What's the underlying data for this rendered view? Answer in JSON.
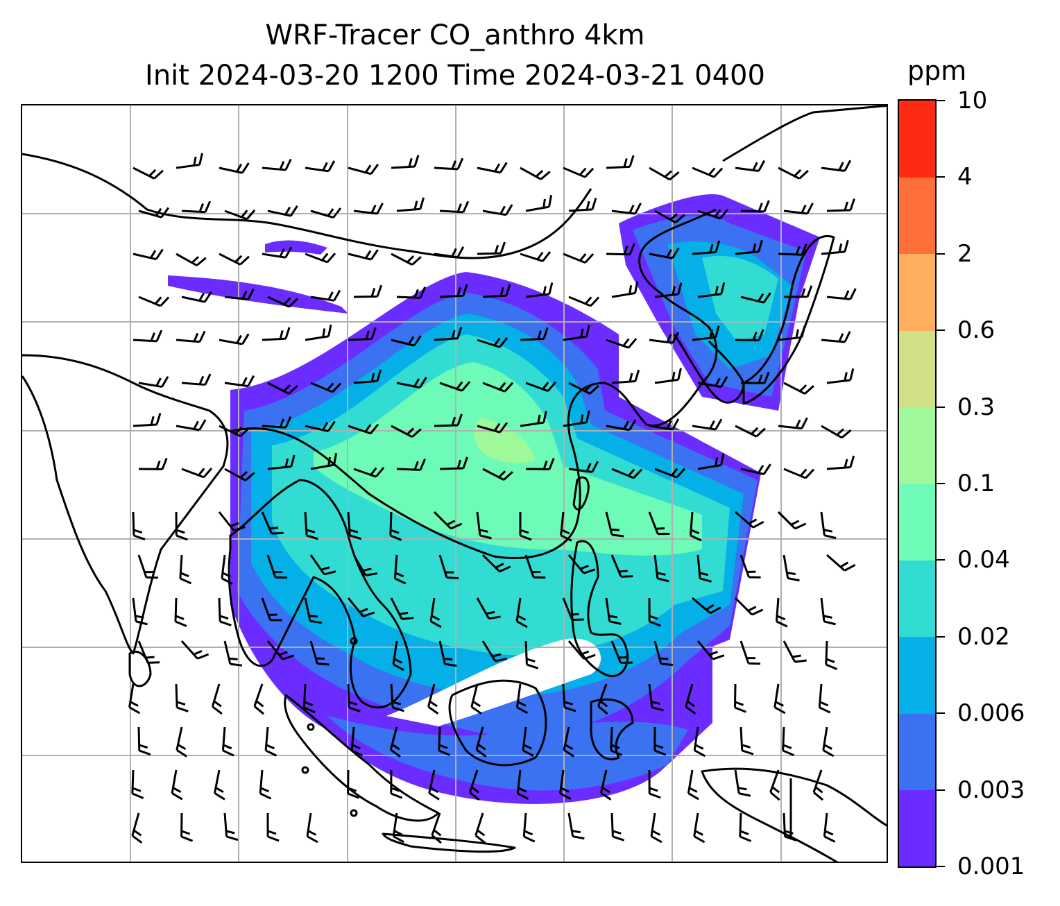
{
  "title": {
    "line1": "WRF-Tracer CO_anthro 4km",
    "line2": "Init 2024-03-20 1200 Time 2024-03-21 0400"
  },
  "colorbar": {
    "unit": "ppm",
    "levels": [
      "0.001",
      "0.003",
      "0.006",
      "0.02",
      "0.04",
      "0.1",
      "0.3",
      "0.6",
      "2",
      "4",
      "10"
    ],
    "colors": [
      "#6a2cff",
      "#3a72f2",
      "#05b0e8",
      "#33dcd3",
      "#6efbb8",
      "#9ff99a",
      "#d2e186",
      "#ffae5e",
      "#ff7038",
      "#ff2a14"
    ]
  },
  "map": {
    "gridlines": true,
    "grid_color": "#b0b0b0",
    "coastline_color": "#000000",
    "wind_barbs": true,
    "calm_marker": "circle"
  }
}
